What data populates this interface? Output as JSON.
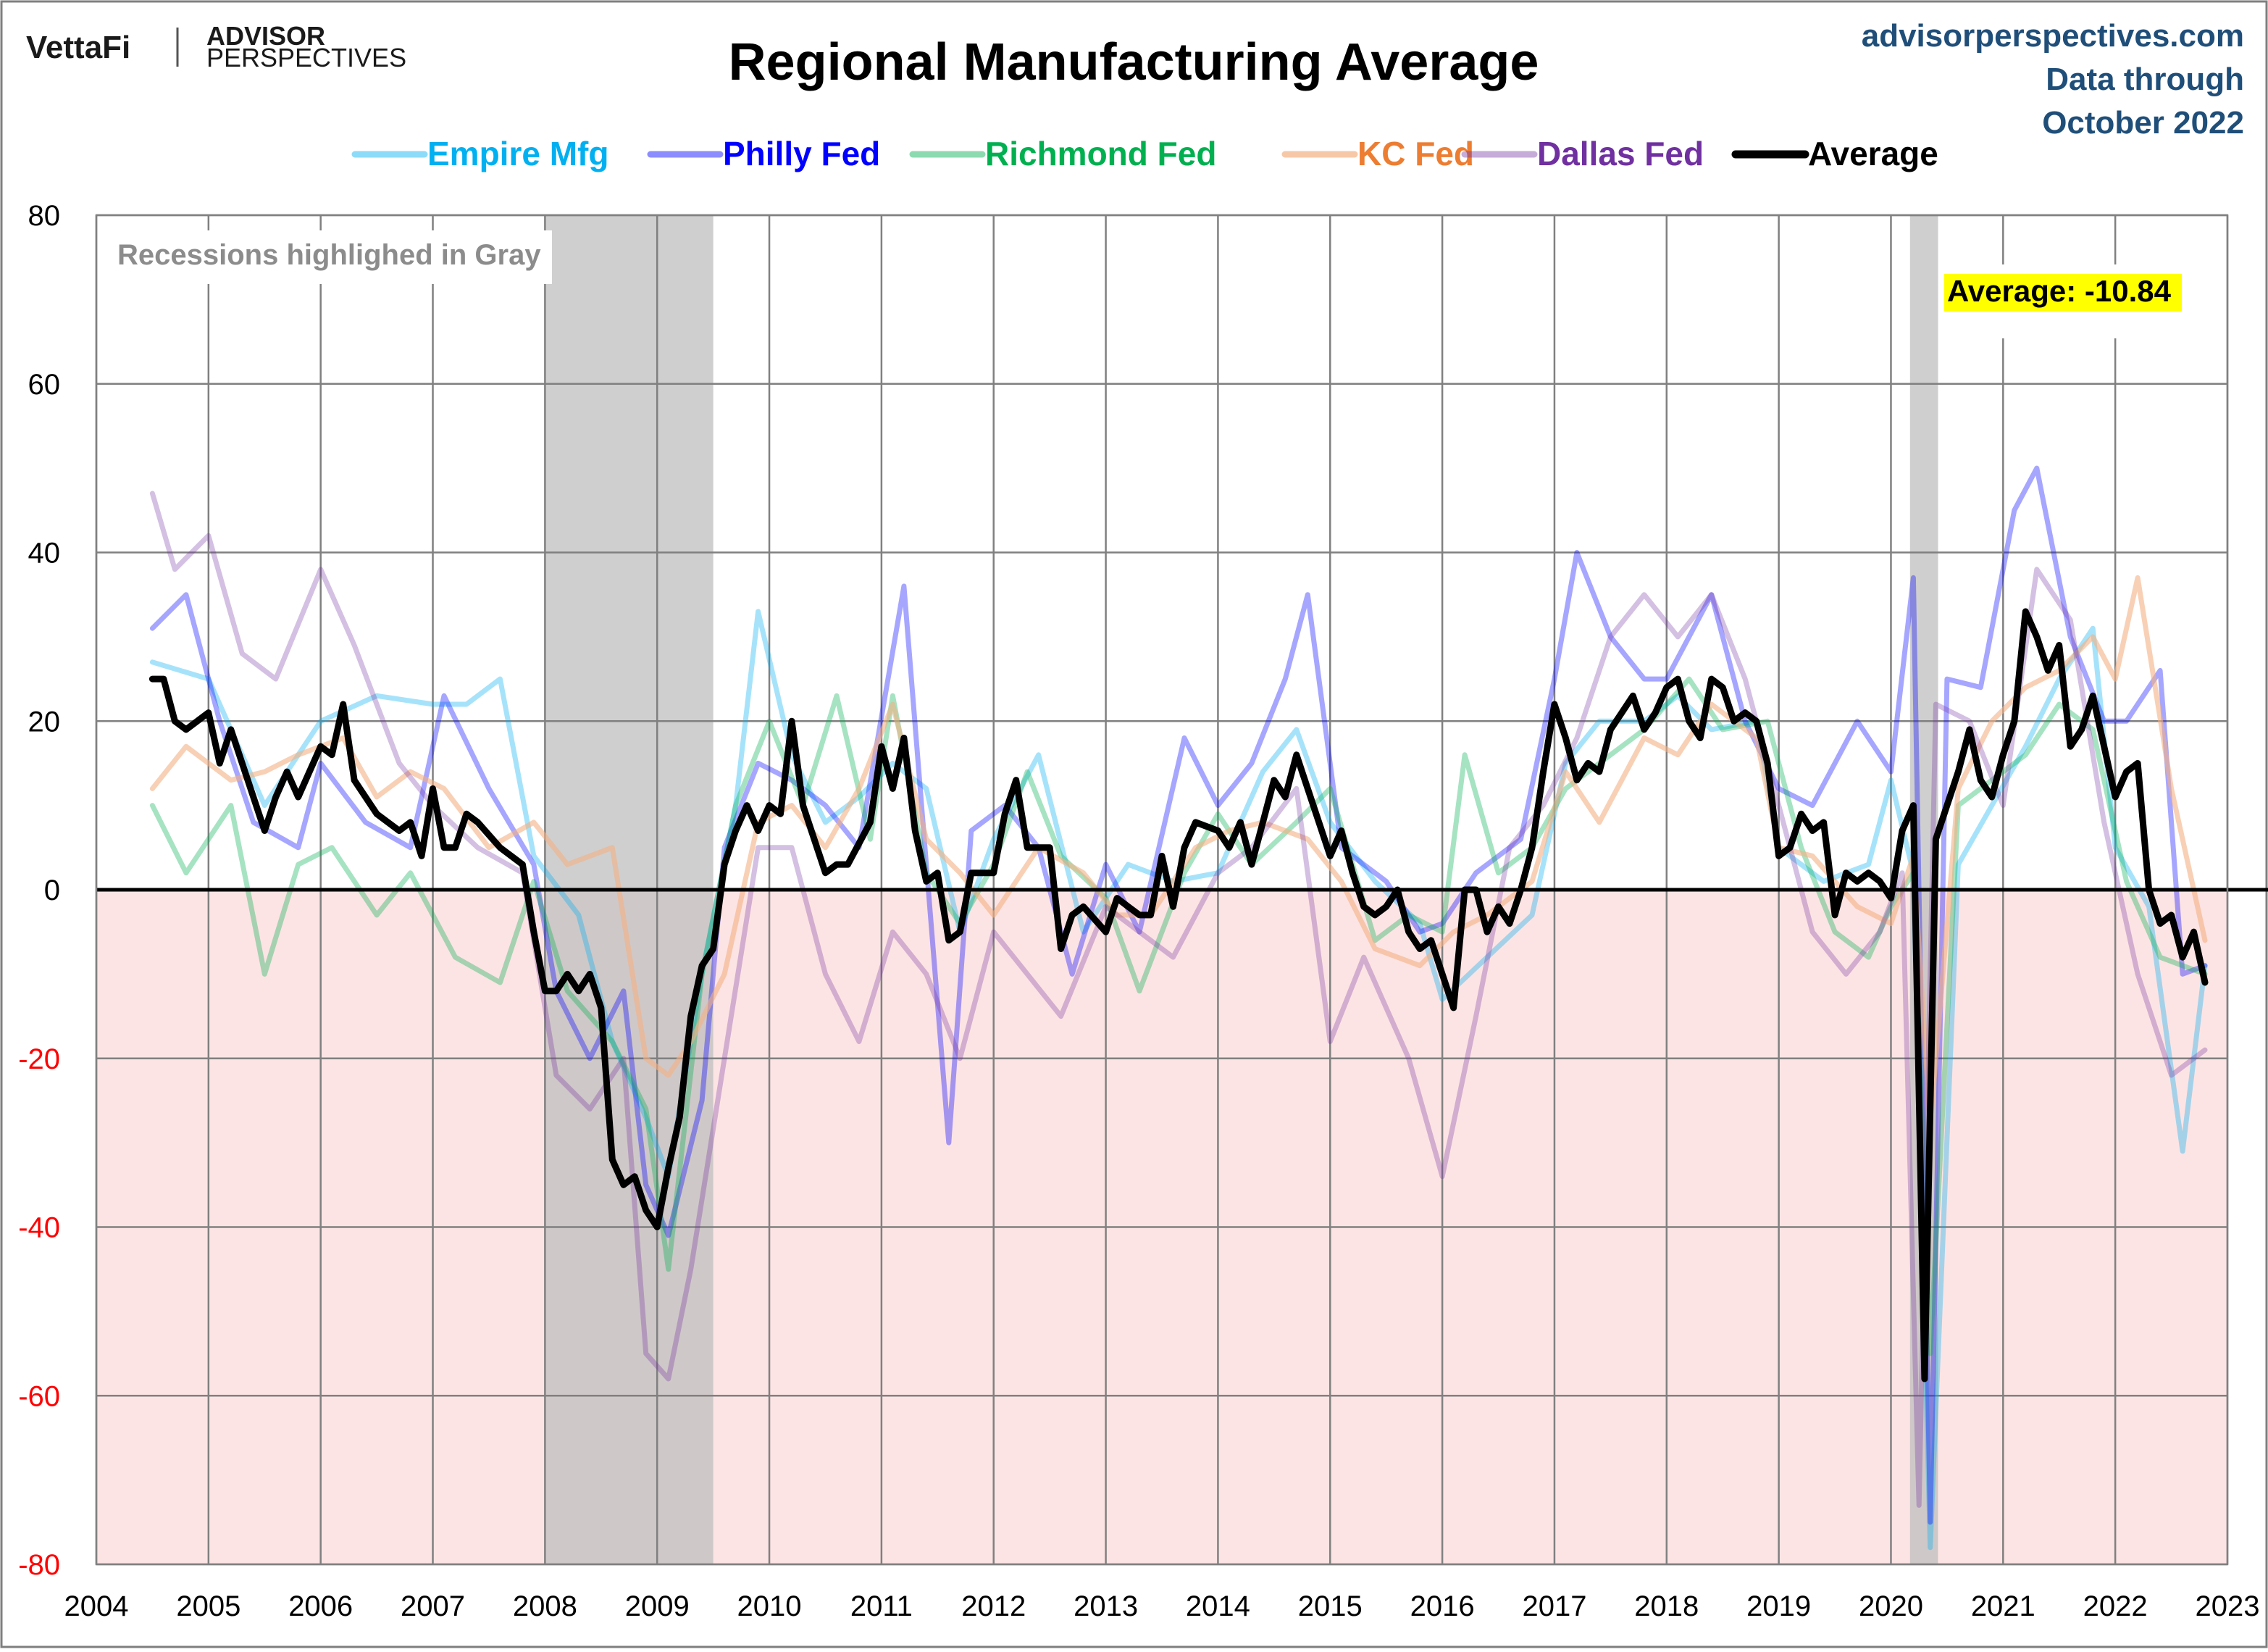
{
  "branding": {
    "logo_vettafi": "VettaFi",
    "logo_advisor": "ADVISOR",
    "logo_perspectives": "PERSPECTIVES",
    "site": "advisorperspectives.com",
    "data_through_line1": "Data through",
    "data_through_line2": "October 2022",
    "site_color": "#1f4e79"
  },
  "chart_data": {
    "type": "line",
    "title": "Regional Manufacturing Average",
    "xlabel": "",
    "ylabel": "",
    "xlim": [
      2004,
      2023
    ],
    "ylim": [
      -80,
      80
    ],
    "x_ticks": [
      2004,
      2005,
      2006,
      2007,
      2008,
      2009,
      2010,
      2011,
      2012,
      2013,
      2014,
      2015,
      2016,
      2017,
      2018,
      2019,
      2020,
      2021,
      2022,
      2023
    ],
    "y_ticks": [
      80,
      60,
      40,
      20,
      0,
      -20,
      -40,
      -60,
      -80
    ],
    "negative_tick_color": "#ff0000",
    "negative_region_color": "#fde4e4",
    "grid": true,
    "legend_position": "top-center",
    "annotation": "Recessions highlighed in Gray",
    "recessions": [
      [
        2008.0,
        2009.5
      ],
      [
        2020.17,
        2020.42
      ]
    ],
    "last_value_label": "Average: -10.84",
    "series": [
      {
        "name": "Empire Mfg",
        "color": "#00b0f0",
        "legend_text_color": "#00b0f0",
        "opacity": 0.35,
        "width": 7,
        "x": [
          2004.5,
          2005.0,
          2005.5,
          2006.0,
          2006.5,
          2007.0,
          2007.3,
          2007.6,
          2007.9,
          2008.3,
          2008.6,
          2008.9,
          2009.1,
          2009.4,
          2009.7,
          2009.9,
          2010.2,
          2010.5,
          2010.8,
          2011.1,
          2011.4,
          2011.7,
          2012.0,
          2012.4,
          2012.8,
          2013.2,
          2013.6,
          2014.0,
          2014.4,
          2014.7,
          2015.0,
          2015.4,
          2015.8,
          2016.0,
          2016.4,
          2016.8,
          2017.1,
          2017.4,
          2017.8,
          2018.1,
          2018.4,
          2018.8,
          2019.0,
          2019.4,
          2019.8,
          2020.0,
          2020.2,
          2020.35,
          2020.6,
          2020.9,
          2021.2,
          2021.5,
          2021.8,
          2022.0,
          2022.3,
          2022.6,
          2022.8
        ],
        "values": [
          27,
          25,
          10,
          20,
          23,
          22,
          22,
          25,
          4,
          -3,
          -18,
          -27,
          -34,
          -10,
          10,
          33,
          16,
          8,
          11,
          15,
          12,
          -5,
          6,
          16,
          -5,
          3,
          1,
          2,
          14,
          19,
          8,
          1,
          -4,
          -13,
          -8,
          -3,
          15,
          20,
          20,
          23,
          19,
          20,
          5,
          1,
          3,
          13,
          2,
          -78,
          3,
          10,
          17,
          25,
          31,
          5,
          -2,
          -31,
          -9
        ]
      },
      {
        "name": "Philly Fed",
        "color": "#0000ff",
        "legend_text_color": "#0000ff",
        "opacity": 0.35,
        "width": 7,
        "x": [
          2004.5,
          2004.8,
          2005.1,
          2005.4,
          2005.8,
          2006.0,
          2006.4,
          2006.8,
          2007.1,
          2007.5,
          2007.9,
          2008.1,
          2008.4,
          2008.7,
          2008.9,
          2009.1,
          2009.4,
          2009.6,
          2009.9,
          2010.2,
          2010.5,
          2010.8,
          2011.2,
          2011.4,
          2011.6,
          2011.8,
          2012.1,
          2012.4,
          2012.7,
          2013.0,
          2013.3,
          2013.7,
          2014.0,
          2014.3,
          2014.6,
          2014.8,
          2015.1,
          2015.5,
          2015.8,
          2016.0,
          2016.3,
          2016.7,
          2017.0,
          2017.2,
          2017.5,
          2017.8,
          2018.0,
          2018.4,
          2018.7,
          2019.0,
          2019.3,
          2019.7,
          2020.0,
          2020.2,
          2020.35,
          2020.5,
          2020.8,
          2021.1,
          2021.3,
          2021.6,
          2021.9,
          2022.1,
          2022.4,
          2022.6,
          2022.8
        ],
        "values": [
          31,
          35,
          20,
          8,
          5,
          15,
          8,
          5,
          23,
          12,
          3,
          -12,
          -20,
          -12,
          -35,
          -41,
          -25,
          5,
          15,
          13,
          10,
          5,
          36,
          3,
          -30,
          7,
          10,
          5,
          -10,
          3,
          -5,
          18,
          10,
          15,
          25,
          35,
          5,
          1,
          -5,
          -4,
          2,
          6,
          25,
          40,
          30,
          25,
          25,
          35,
          20,
          12,
          10,
          20,
          14,
          37,
          -75,
          25,
          24,
          45,
          50,
          30,
          20,
          20,
          26,
          -10,
          -9
        ]
      },
      {
        "name": "Richmond Fed",
        "color": "#00b050",
        "legend_text_color": "#00b050",
        "opacity": 0.35,
        "width": 7,
        "x": [
          2004.5,
          2004.8,
          2005.2,
          2005.5,
          2005.8,
          2006.1,
          2006.5,
          2006.8,
          2007.2,
          2007.6,
          2007.9,
          2008.2,
          2008.6,
          2008.9,
          2009.1,
          2009.4,
          2009.7,
          2010.0,
          2010.3,
          2010.6,
          2010.9,
          2011.1,
          2011.4,
          2011.7,
          2012.0,
          2012.3,
          2012.6,
          2013.0,
          2013.3,
          2013.7,
          2014.0,
          2014.3,
          2014.7,
          2015.0,
          2015.4,
          2015.7,
          2016.0,
          2016.2,
          2016.5,
          2016.8,
          2017.1,
          2017.4,
          2017.8,
          2018.2,
          2018.5,
          2018.9,
          2019.2,
          2019.5,
          2019.8,
          2020.0,
          2020.2,
          2020.35,
          2020.6,
          2020.9,
          2021.2,
          2021.5,
          2021.8,
          2022.1,
          2022.4,
          2022.6,
          2022.8
        ],
        "values": [
          10,
          2,
          10,
          -10,
          3,
          5,
          -3,
          2,
          -8,
          -11,
          1,
          -12,
          -18,
          -26,
          -45,
          -10,
          10,
          20,
          10,
          23,
          6,
          23,
          2,
          -4,
          3,
          14,
          4,
          -1,
          -12,
          2,
          9,
          3,
          8,
          12,
          -6,
          -3,
          -5,
          16,
          2,
          5,
          12,
          15,
          19,
          25,
          19,
          20,
          5,
          -5,
          -8,
          -2,
          2,
          -55,
          10,
          13,
          16,
          22,
          19,
          1,
          -8,
          -9,
          -10
        ]
      },
      {
        "name": "KC Fed",
        "color": "#f4b183",
        "legend_text_color": "#ed7d31",
        "opacity": 0.6,
        "width": 7,
        "x": [
          2004.5,
          2004.8,
          2005.2,
          2005.5,
          2005.8,
          2006.2,
          2006.5,
          2006.8,
          2007.1,
          2007.5,
          2007.9,
          2008.2,
          2008.6,
          2008.9,
          2009.1,
          2009.3,
          2009.6,
          2009.9,
          2010.2,
          2010.5,
          2010.8,
          2011.1,
          2011.4,
          2011.7,
          2012.0,
          2012.4,
          2012.8,
          2013.1,
          2013.4,
          2013.8,
          2014.1,
          2014.4,
          2014.8,
          2015.1,
          2015.4,
          2015.8,
          2016.1,
          2016.4,
          2016.8,
          2017.1,
          2017.4,
          2017.8,
          2018.1,
          2018.4,
          2018.8,
          2019.0,
          2019.3,
          2019.7,
          2020.0,
          2020.2,
          2020.35,
          2020.6,
          2020.9,
          2021.2,
          2021.5,
          2021.8,
          2022.0,
          2022.2,
          2022.5,
          2022.8
        ],
        "values": [
          12,
          17,
          13,
          14,
          16,
          18,
          11,
          14,
          12,
          5,
          8,
          3,
          5,
          -20,
          -22,
          -18,
          -10,
          8,
          10,
          5,
          12,
          22,
          6,
          2,
          -3,
          5,
          2,
          -3,
          -3,
          5,
          7,
          8,
          6,
          1,
          -7,
          -9,
          -5,
          -3,
          1,
          14,
          8,
          18,
          16,
          22,
          18,
          5,
          4,
          -2,
          -4,
          4,
          -28,
          12,
          20,
          24,
          26,
          30,
          25,
          37,
          12,
          -6
        ]
      },
      {
        "name": "Dallas Fed",
        "color": "#7030a0",
        "legend_text_color": "#7030a0",
        "opacity": 0.3,
        "width": 7,
        "x": [
          2004.5,
          2004.7,
          2005.0,
          2005.3,
          2005.6,
          2006.0,
          2006.3,
          2006.7,
          2007.0,
          2007.4,
          2007.8,
          2008.1,
          2008.4,
          2008.7,
          2008.9,
          2009.1,
          2009.3,
          2009.6,
          2009.9,
          2010.2,
          2010.5,
          2010.8,
          2011.1,
          2011.4,
          2011.7,
          2012.0,
          2012.3,
          2012.6,
          2013.0,
          2013.3,
          2013.6,
          2014.0,
          2014.3,
          2014.7,
          2015.0,
          2015.3,
          2015.7,
          2016.0,
          2016.3,
          2016.6,
          2016.9,
          2017.2,
          2017.5,
          2017.8,
          2018.1,
          2018.4,
          2018.7,
          2019.0,
          2019.3,
          2019.6,
          2019.9,
          2020.1,
          2020.25,
          2020.4,
          2020.7,
          2021.0,
          2021.3,
          2021.6,
          2021.9,
          2022.2,
          2022.5,
          2022.8
        ],
        "values": [
          47,
          38,
          42,
          28,
          25,
          38,
          29,
          15,
          10,
          5,
          2,
          -22,
          -26,
          -20,
          -55,
          -58,
          -45,
          -20,
          5,
          5,
          -10,
          -18,
          -5,
          -10,
          -20,
          -5,
          -10,
          -15,
          -2,
          -5,
          -8,
          2,
          5,
          12,
          -18,
          -8,
          -20,
          -34,
          -15,
          5,
          10,
          18,
          30,
          35,
          30,
          35,
          25,
          10,
          -5,
          -10,
          -5,
          2,
          -73,
          22,
          20,
          10,
          38,
          32,
          8,
          -10,
          -22,
          -19
        ]
      },
      {
        "name": "Average",
        "color": "#000000",
        "legend_text_color": "#000000",
        "opacity": 1,
        "width": 9,
        "x": [
          2004.5,
          2004.6,
          2004.7,
          2004.8,
          2005.0,
          2005.1,
          2005.2,
          2005.4,
          2005.5,
          2005.6,
          2005.7,
          2005.8,
          2006.0,
          2006.1,
          2006.2,
          2006.3,
          2006.5,
          2006.7,
          2006.8,
          2006.9,
          2007.0,
          2007.1,
          2007.2,
          2007.3,
          2007.4,
          2007.6,
          2007.8,
          2007.9,
          2008.0,
          2008.1,
          2008.2,
          2008.3,
          2008.4,
          2008.5,
          2008.6,
          2008.7,
          2008.8,
          2008.9,
          2009.0,
          2009.1,
          2009.2,
          2009.3,
          2009.4,
          2009.5,
          2009.6,
          2009.7,
          2009.8,
          2009.9,
          2010.0,
          2010.1,
          2010.2,
          2010.3,
          2010.5,
          2010.6,
          2010.7,
          2010.9,
          2011.0,
          2011.1,
          2011.2,
          2011.3,
          2011.4,
          2011.5,
          2011.6,
          2011.7,
          2011.8,
          2012.0,
          2012.1,
          2012.2,
          2012.3,
          2012.5,
          2012.6,
          2012.7,
          2012.8,
          2013.0,
          2013.1,
          2013.2,
          2013.3,
          2013.4,
          2013.5,
          2013.6,
          2013.7,
          2013.8,
          2014.0,
          2014.1,
          2014.2,
          2014.3,
          2014.4,
          2014.5,
          2014.6,
          2014.7,
          2014.8,
          2015.0,
          2015.1,
          2015.2,
          2015.3,
          2015.4,
          2015.5,
          2015.6,
          2015.7,
          2015.8,
          2015.9,
          2016.0,
          2016.1,
          2016.2,
          2016.3,
          2016.4,
          2016.5,
          2016.6,
          2016.7,
          2016.8,
          2016.9,
          2017.0,
          2017.1,
          2017.2,
          2017.3,
          2017.4,
          2017.5,
          2017.6,
          2017.7,
          2017.8,
          2017.9,
          2018.0,
          2018.1,
          2018.2,
          2018.3,
          2018.4,
          2018.5,
          2018.6,
          2018.7,
          2018.8,
          2018.9,
          2019.0,
          2019.1,
          2019.2,
          2019.3,
          2019.4,
          2019.5,
          2019.6,
          2019.7,
          2019.8,
          2019.9,
          2020.0,
          2020.1,
          2020.2,
          2020.3,
          2020.4,
          2020.5,
          2020.6,
          2020.7,
          2020.8,
          2020.9,
          2021.0,
          2021.1,
          2021.2,
          2021.3,
          2021.4,
          2021.5,
          2021.6,
          2021.7,
          2021.8,
          2021.9,
          2022.0,
          2022.1,
          2022.2,
          2022.3,
          2022.4,
          2022.5,
          2022.6,
          2022.7,
          2022.8
        ],
        "values": [
          25,
          25,
          20,
          19,
          21,
          15,
          19,
          11,
          7,
          11,
          14,
          11,
          17,
          16,
          22,
          13,
          9,
          7,
          8,
          4,
          12,
          5,
          5,
          9,
          8,
          5,
          3,
          -5,
          -12,
          -12,
          -10,
          -12,
          -10,
          -14,
          -32,
          -35,
          -34,
          -38,
          -40,
          -33,
          -27,
          -15,
          -9,
          -7,
          3,
          7,
          10,
          7,
          10,
          9,
          20,
          10,
          2,
          3,
          3,
          8,
          17,
          12,
          18,
          7,
          1,
          2,
          -6,
          -5,
          2,
          2,
          9,
          13,
          5,
          5,
          -7,
          -3,
          -2,
          -5,
          -1,
          -2,
          -3,
          -3,
          4,
          -2,
          5,
          8,
          7,
          5,
          8,
          3,
          8,
          13,
          11,
          16,
          12,
          4,
          7,
          2,
          -2,
          -3,
          -2,
          0,
          -5,
          -7,
          -6,
          -10,
          -14,
          0,
          0,
          -5,
          -2,
          -4,
          0,
          5,
          14,
          22,
          18,
          13,
          15,
          14,
          19,
          21,
          23,
          19,
          21,
          24,
          25,
          20,
          18,
          25,
          24,
          20,
          21,
          20,
          15,
          4,
          5,
          9,
          7,
          8,
          -3,
          2,
          1,
          2,
          1,
          -1,
          7,
          10,
          -58,
          6,
          10,
          14,
          19,
          13,
          11,
          16,
          20,
          33,
          30,
          26,
          29,
          17,
          19,
          23,
          17,
          11,
          14,
          15,
          0,
          -4,
          -3,
          -8,
          -5,
          -11
        ]
      }
    ]
  }
}
